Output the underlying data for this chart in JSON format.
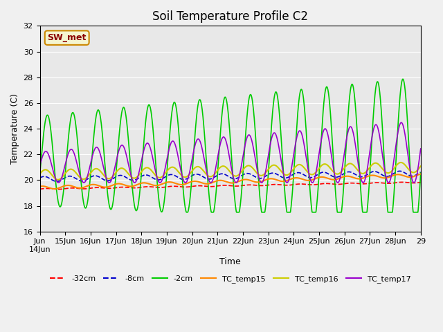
{
  "title": "Soil Temperature Profile C2",
  "xlabel": "Time",
  "ylabel": "Temperature (C)",
  "ylim": [
    16,
    32
  ],
  "xlim": [
    0,
    15
  ],
  "background_color": "#f0f0f0",
  "plot_bg_color": "#e8e8e8",
  "annotation_text": "SW_met",
  "annotation_bg": "#f5f5d0",
  "annotation_border": "#cc8800",
  "annotation_text_color": "#8b0000",
  "colors": {
    "-32cm": "#ff0000",
    "-8cm": "#0000cc",
    "-2cm": "#00cc00",
    "TC_temp15": "#ff8800",
    "TC_temp16": "#cccc00",
    "TC_temp17": "#9900cc"
  }
}
